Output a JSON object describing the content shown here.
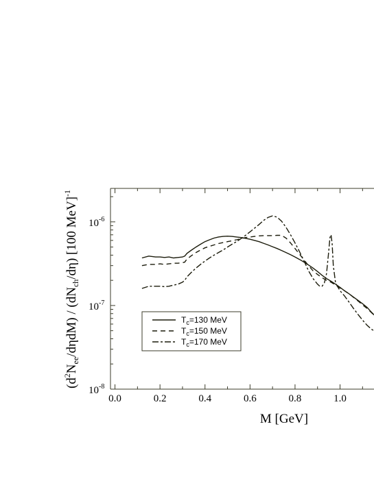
{
  "chart_data": {
    "type": "line",
    "title": "",
    "xlabel": "M [GeV]",
    "ylabel_parts": [
      "(d",
      "2",
      "N",
      "ee",
      "/dηdM) / (dN",
      "ch",
      "/dη) [100 MeV]",
      "-1"
    ],
    "xlim": [
      -0.02,
      1.16
    ],
    "ylim_log10": [
      -8,
      -5.6
    ],
    "y_scale": "log",
    "grid": false,
    "legend_position": "lower-left",
    "x_ticks": [
      {
        "value": 0.0,
        "label": "0.0"
      },
      {
        "value": 0.2,
        "label": "0.2"
      },
      {
        "value": 0.4,
        "label": "0.4"
      },
      {
        "value": 0.6,
        "label": "0.6"
      },
      {
        "value": 0.8,
        "label": "0.8"
      },
      {
        "value": 1.0,
        "label": "1.0"
      }
    ],
    "y_ticks": [
      {
        "exp": -8,
        "base": "10",
        "sup": "-8"
      },
      {
        "exp": -7,
        "base": "10",
        "sup": "-7"
      },
      {
        "exp": -6,
        "base": "10",
        "sup": "-6"
      }
    ],
    "series": [
      {
        "name_parts": [
          "T",
          "c",
          "=130 MeV"
        ],
        "dash": "",
        "x": [
          0.12,
          0.15,
          0.18,
          0.2,
          0.22,
          0.24,
          0.26,
          0.28,
          0.3,
          0.31,
          0.32,
          0.34,
          0.36,
          0.38,
          0.4,
          0.42,
          0.44,
          0.46,
          0.48,
          0.5,
          0.52,
          0.54,
          0.56,
          0.58,
          0.6,
          0.62,
          0.64,
          0.66,
          0.68,
          0.7,
          0.72,
          0.74,
          0.76,
          0.78,
          0.8,
          0.82,
          0.84,
          0.86,
          0.88,
          0.9,
          0.92,
          0.94,
          0.96,
          0.98,
          1.0,
          1.02,
          1.04,
          1.06,
          1.08,
          1.1,
          1.12,
          1.14,
          1.16
        ],
        "y": [
          3.7e-07,
          3.9e-07,
          3.8e-07,
          3.8e-07,
          3.75e-07,
          3.8e-07,
          3.7e-07,
          3.75e-07,
          3.8e-07,
          3.9e-07,
          4.2e-07,
          4.6e-07,
          5e-07,
          5.4e-07,
          5.8e-07,
          6.1e-07,
          6.4e-07,
          6.6e-07,
          6.7e-07,
          6.75e-07,
          6.7e-07,
          6.6e-07,
          6.5e-07,
          6.35e-07,
          6.2e-07,
          6e-07,
          5.8e-07,
          5.55e-07,
          5.3e-07,
          5.05e-07,
          4.8e-07,
          4.55e-07,
          4.3e-07,
          4.05e-07,
          3.8e-07,
          3.55e-07,
          3.3e-07,
          3.05e-07,
          2.8e-07,
          2.55e-07,
          2.3e-07,
          2.1e-07,
          1.95e-07,
          1.8e-07,
          1.65e-07,
          1.5e-07,
          1.38e-07,
          1.26e-07,
          1.15e-07,
          1.05e-07,
          9.5e-08,
          8.3e-08,
          7.3e-08
        ]
      },
      {
        "name_parts": [
          "T",
          "c",
          "=150 MeV"
        ],
        "dash": "7,5",
        "x": [
          0.12,
          0.15,
          0.18,
          0.2,
          0.22,
          0.24,
          0.26,
          0.28,
          0.3,
          0.31,
          0.32,
          0.34,
          0.36,
          0.38,
          0.4,
          0.42,
          0.44,
          0.46,
          0.48,
          0.5,
          0.52,
          0.54,
          0.56,
          0.58,
          0.6,
          0.62,
          0.64,
          0.66,
          0.68,
          0.7,
          0.72,
          0.74,
          0.76,
          0.78,
          0.8,
          0.82,
          0.84,
          0.86,
          0.88,
          0.9,
          0.92,
          0.94,
          0.96,
          0.98,
          1.0,
          1.02,
          1.04,
          1.06,
          1.08,
          1.1,
          1.12,
          1.14,
          1.16
        ],
        "y": [
          3e-07,
          3.1e-07,
          3.1e-07,
          3.15e-07,
          3.1e-07,
          3.15e-07,
          3.2e-07,
          3.2e-07,
          3.25e-07,
          3.3e-07,
          3.6e-07,
          3.95e-07,
          4.3e-07,
          4.6e-07,
          4.9e-07,
          5.1e-07,
          5.3e-07,
          5.5e-07,
          5.65e-07,
          5.8e-07,
          5.95e-07,
          6.1e-07,
          6.3e-07,
          6.5e-07,
          6.6e-07,
          6.7e-07,
          6.8e-07,
          6.85e-07,
          6.85e-07,
          6.85e-07,
          6.9e-07,
          6.9e-07,
          6.4e-07,
          5.6e-07,
          4.8e-07,
          4.1e-07,
          3.5e-07,
          3e-07,
          2.6e-07,
          2.35e-07,
          2.15e-07,
          2e-07,
          1.9e-07,
          1.75e-07,
          1.62e-07,
          1.5e-07,
          1.38e-07,
          1.25e-07,
          1.13e-07,
          1.02e-07,
          9.2e-08,
          8.2e-08,
          7.2e-08
        ]
      },
      {
        "name_parts": [
          "T",
          "c",
          "=170 MeV"
        ],
        "dash": "9,3,3,3",
        "x": [
          0.12,
          0.15,
          0.18,
          0.2,
          0.22,
          0.24,
          0.26,
          0.28,
          0.3,
          0.31,
          0.32,
          0.34,
          0.36,
          0.38,
          0.4,
          0.42,
          0.44,
          0.46,
          0.48,
          0.5,
          0.52,
          0.54,
          0.56,
          0.58,
          0.6,
          0.62,
          0.64,
          0.66,
          0.68,
          0.7,
          0.72,
          0.74,
          0.76,
          0.78,
          0.8,
          0.82,
          0.84,
          0.86,
          0.88,
          0.9,
          0.91,
          0.92,
          0.93,
          0.94,
          0.95,
          0.955,
          0.96,
          0.965,
          0.97,
          0.98,
          1.0,
          1.02,
          1.04,
          1.06,
          1.08,
          1.1,
          1.12,
          1.14,
          1.16
        ],
        "y": [
          1.6e-07,
          1.7e-07,
          1.7e-07,
          1.7e-07,
          1.68e-07,
          1.7e-07,
          1.75e-07,
          1.8e-07,
          1.9e-07,
          2e-07,
          2.2e-07,
          2.5e-07,
          2.8e-07,
          3.1e-07,
          3.4e-07,
          3.7e-07,
          4e-07,
          4.3e-07,
          4.6e-07,
          5e-07,
          5.4e-07,
          5.8e-07,
          6.3e-07,
          6.9e-07,
          7.6e-07,
          8.4e-07,
          9.3e-07,
          1.04e-06,
          1.13e-06,
          1.18e-06,
          1.14e-06,
          1.02e-06,
          8.6e-07,
          7e-07,
          5.6e-07,
          4.4e-07,
          3.4e-07,
          2.6e-07,
          2.1e-07,
          1.8e-07,
          1.7e-07,
          1.7e-07,
          1.85e-07,
          2.4e-07,
          4.5e-07,
          6.5e-07,
          7e-07,
          5.5e-07,
          3e-07,
          1.85e-07,
          1.5e-07,
          1.3e-07,
          1.1e-07,
          9.2e-08,
          7.8e-08,
          6.7e-08,
          5.8e-08,
          5.2e-08,
          4.8e-08
        ]
      }
    ]
  }
}
